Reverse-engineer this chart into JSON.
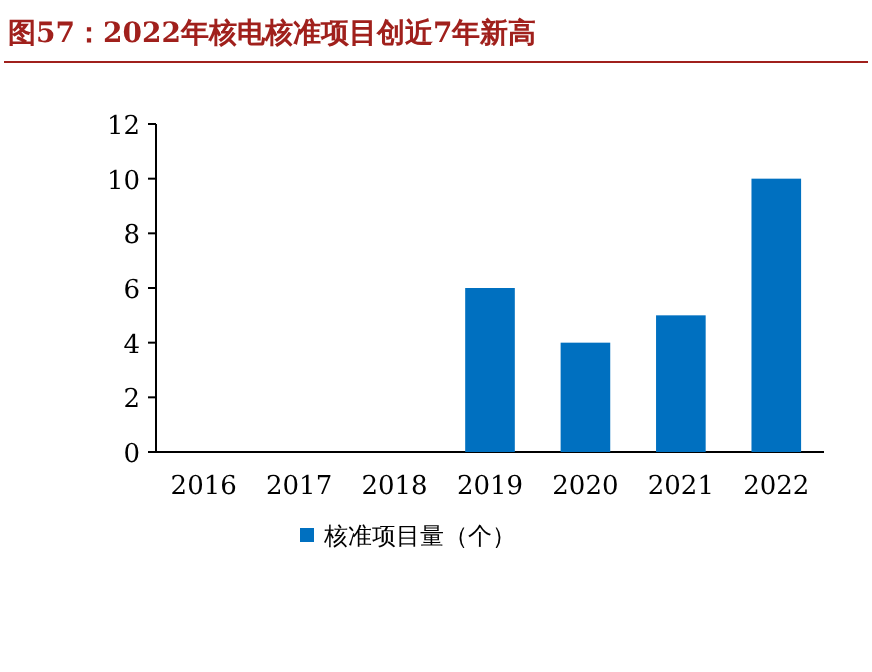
{
  "chart_data": {
    "type": "bar",
    "title": "图57：2022年核电核准项目创近7年新高",
    "categories": [
      "2016",
      "2017",
      "2018",
      "2019",
      "2020",
      "2021",
      "2022"
    ],
    "series": [
      {
        "name": "核准项目量（个）",
        "color": "#0070c0",
        "values": [
          0,
          0,
          0,
          6,
          4,
          5,
          10
        ]
      }
    ],
    "ylim": [
      0,
      12
    ],
    "yticks": [
      0,
      2,
      4,
      6,
      8,
      10,
      12
    ],
    "grid": false,
    "legend": "bottom"
  }
}
